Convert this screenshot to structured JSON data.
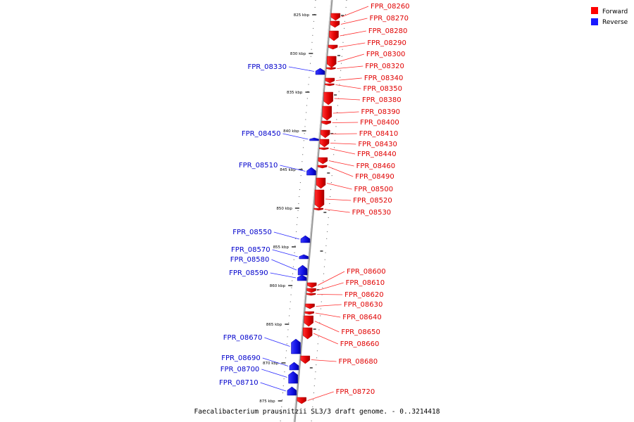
{
  "caption": "Faecalibacterium prausnitzii SL3/3 draft genome. - 0..3214418",
  "legend": [
    {
      "label": "Forward",
      "color": "#ff0000"
    },
    {
      "label": "Reverse",
      "color": "#1a1aff"
    }
  ],
  "ticks": [
    "825 kbp",
    "830 kbp",
    "835 kbp",
    "840 kbp",
    "845 kbp",
    "850 kbp",
    "855 kbp",
    "860 kbp",
    "865 kbp",
    "870 kbp",
    "875 kbp"
  ],
  "genes": [
    {
      "name": "FPR_08260",
      "strand": "forward"
    },
    {
      "name": "FPR_08270",
      "strand": "forward"
    },
    {
      "name": "FPR_08280",
      "strand": "forward"
    },
    {
      "name": "FPR_08290",
      "strand": "forward"
    },
    {
      "name": "FPR_08300",
      "strand": "forward"
    },
    {
      "name": "FPR_08320",
      "strand": "forward"
    },
    {
      "name": "FPR_08330",
      "strand": "reverse"
    },
    {
      "name": "FPR_08340",
      "strand": "forward"
    },
    {
      "name": "FPR_08350",
      "strand": "forward"
    },
    {
      "name": "FPR_08380",
      "strand": "forward"
    },
    {
      "name": "FPR_08390",
      "strand": "forward"
    },
    {
      "name": "FPR_08400",
      "strand": "forward"
    },
    {
      "name": "FPR_08410",
      "strand": "forward"
    },
    {
      "name": "FPR_08430",
      "strand": "forward"
    },
    {
      "name": "FPR_08440",
      "strand": "forward"
    },
    {
      "name": "FPR_08450",
      "strand": "reverse"
    },
    {
      "name": "FPR_08460",
      "strand": "forward"
    },
    {
      "name": "FPR_08490",
      "strand": "forward"
    },
    {
      "name": "FPR_08500",
      "strand": "forward"
    },
    {
      "name": "FPR_08510",
      "strand": "reverse"
    },
    {
      "name": "FPR_08520",
      "strand": "forward"
    },
    {
      "name": "FPR_08530",
      "strand": "forward"
    },
    {
      "name": "FPR_08550",
      "strand": "reverse"
    },
    {
      "name": "FPR_08570",
      "strand": "reverse"
    },
    {
      "name": "FPR_08580",
      "strand": "reverse"
    },
    {
      "name": "FPR_08590",
      "strand": "reverse"
    },
    {
      "name": "FPR_08600",
      "strand": "forward"
    },
    {
      "name": "FPR_08610",
      "strand": "forward"
    },
    {
      "name": "FPR_08620",
      "strand": "forward"
    },
    {
      "name": "FPR_08630",
      "strand": "forward"
    },
    {
      "name": "FPR_08640",
      "strand": "forward"
    },
    {
      "name": "FPR_08650",
      "strand": "forward"
    },
    {
      "name": "FPR_08660",
      "strand": "forward"
    },
    {
      "name": "FPR_08670",
      "strand": "reverse"
    },
    {
      "name": "FPR_08680",
      "strand": "forward"
    },
    {
      "name": "FPR_08690",
      "strand": "reverse"
    },
    {
      "name": "FPR_08700",
      "strand": "reverse"
    },
    {
      "name": "FPR_08710",
      "strand": "reverse"
    },
    {
      "name": "FPR_08720",
      "strand": "forward"
    }
  ]
}
